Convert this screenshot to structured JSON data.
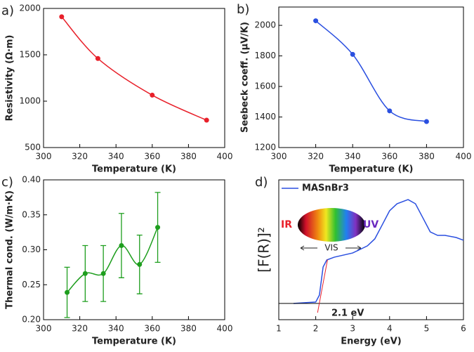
{
  "chart_data": [
    {
      "type": "line",
      "label": "a)",
      "xlabel": "Temperature (K)",
      "ylabel": "Resistivity (Ω·m)",
      "x": [
        310,
        330,
        360,
        390
      ],
      "series": [
        {
          "color": "#e8202a",
          "values": [
            1910,
            1460,
            1065,
            795
          ]
        }
      ],
      "xlim": [
        300,
        400
      ],
      "xticks": [
        300,
        320,
        340,
        360,
        380,
        400
      ],
      "ylim": [
        500,
        2000
      ],
      "yticks": [
        500,
        1000,
        1500,
        2000
      ],
      "smooth": true,
      "markers": true
    },
    {
      "type": "line",
      "label": "b)",
      "xlabel": "Temperature (K)",
      "ylabel": "Seebeck coeff. (μV/K)",
      "x": [
        320,
        340,
        360,
        380
      ],
      "series": [
        {
          "color": "#2a4fe0",
          "values": [
            2030,
            1810,
            1440,
            1370
          ]
        }
      ],
      "xlim": [
        300,
        400
      ],
      "xticks": [
        300,
        320,
        340,
        360,
        380,
        400
      ],
      "ylim": [
        1200,
        2120
      ],
      "yticks": [
        1200,
        1400,
        1600,
        1800,
        2000
      ],
      "smooth": true,
      "markers": true
    },
    {
      "type": "line",
      "label": "c)",
      "xlabel": "Temperature (K)",
      "ylabel": "Thermal cond. (W/m·K)",
      "x": [
        313,
        323,
        333,
        343,
        353,
        363
      ],
      "series": [
        {
          "color": "#1e9e1e",
          "values": [
            0.239,
            0.266,
            0.266,
            0.306,
            0.279,
            0.332
          ],
          "errors": [
            0.036,
            0.04,
            0.04,
            0.046,
            0.042,
            0.05
          ]
        }
      ],
      "xlim": [
        300,
        400
      ],
      "xticks": [
        300,
        320,
        340,
        360,
        380,
        400
      ],
      "ylim": [
        0.2,
        0.4
      ],
      "yticks": [
        {
          "value": 0.2,
          "label": "0.20"
        },
        0.25,
        {
          "value": 0.3,
          "label": "0.30"
        },
        0.35,
        {
          "value": 0.4,
          "label": "0.40"
        }
      ],
      "smooth": true,
      "markers": true
    },
    {
      "type": "line",
      "label": "d)",
      "xlabel": "Energy (eV)",
      "ylabel": "[F(R)]²",
      "x": [
        1.4,
        2.0,
        2.1,
        2.2,
        2.3,
        2.5,
        3.0,
        3.4,
        3.6,
        3.8,
        4.0,
        4.2,
        4.5,
        4.7,
        4.9,
        5.1,
        5.3,
        5.5,
        5.8,
        6.0
      ],
      "series": [
        {
          "name": "MASnBr3",
          "color": "#2a4fe0",
          "values": [
            0.116,
            0.126,
            0.176,
            0.377,
            0.427,
            0.447,
            0.477,
            0.528,
            0.578,
            0.678,
            0.779,
            0.829,
            0.859,
            0.829,
            0.729,
            0.628,
            0.603,
            0.603,
            0.588,
            0.568
          ]
        }
      ],
      "xlim": [
        1,
        6
      ],
      "xticks": [
        1,
        2,
        3,
        4,
        5,
        6
      ],
      "ylim": [
        0,
        1
      ],
      "baseline": 0.116,
      "fit_line": {
        "x": [
          2.05,
          2.32
        ],
        "values": [
          0.05,
          0.43
        ]
      },
      "annotations": [
        "IR",
        "UV",
        "VIS",
        "2.1 eV"
      ],
      "smooth": false,
      "markers": false
    }
  ]
}
